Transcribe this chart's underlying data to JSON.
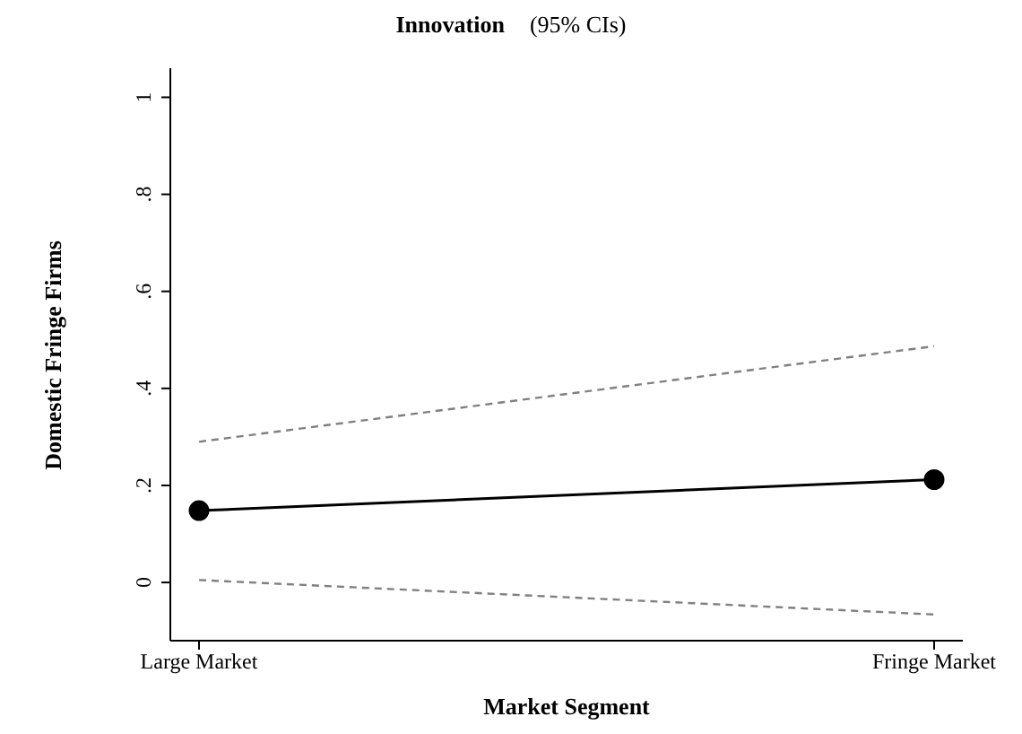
{
  "chart_data": {
    "type": "line",
    "title": "Innovation",
    "subtitle": "(95% CIs)",
    "xlabel": "Market Segment",
    "ylabel": "Domestic Fringe Firms",
    "categories": [
      "Large Market",
      "Fringe Market"
    ],
    "series": [
      {
        "color": "#000000",
        "values": [
          0.148,
          0.212
        ],
        "marker": "circle",
        "line_style": "solid"
      },
      {
        "color": "#808080",
        "values": [
          0.29,
          0.487
        ],
        "marker": "none",
        "line_style": "dashed"
      },
      {
        "color": "#808080",
        "values": [
          0.005,
          -0.066
        ],
        "marker": "none",
        "line_style": "dashed"
      }
    ],
    "ylim": [
      -0.12,
      1.06
    ],
    "yticks": [
      0,
      {
        "value": 0.2,
        "label": ".2"
      },
      {
        "value": 0.4,
        "label": ".4"
      },
      {
        "value": 0.6,
        "label": ".6"
      },
      {
        "value": 0.8,
        "label": ".8"
      },
      1
    ],
    "grid": false,
    "legend": false
  }
}
